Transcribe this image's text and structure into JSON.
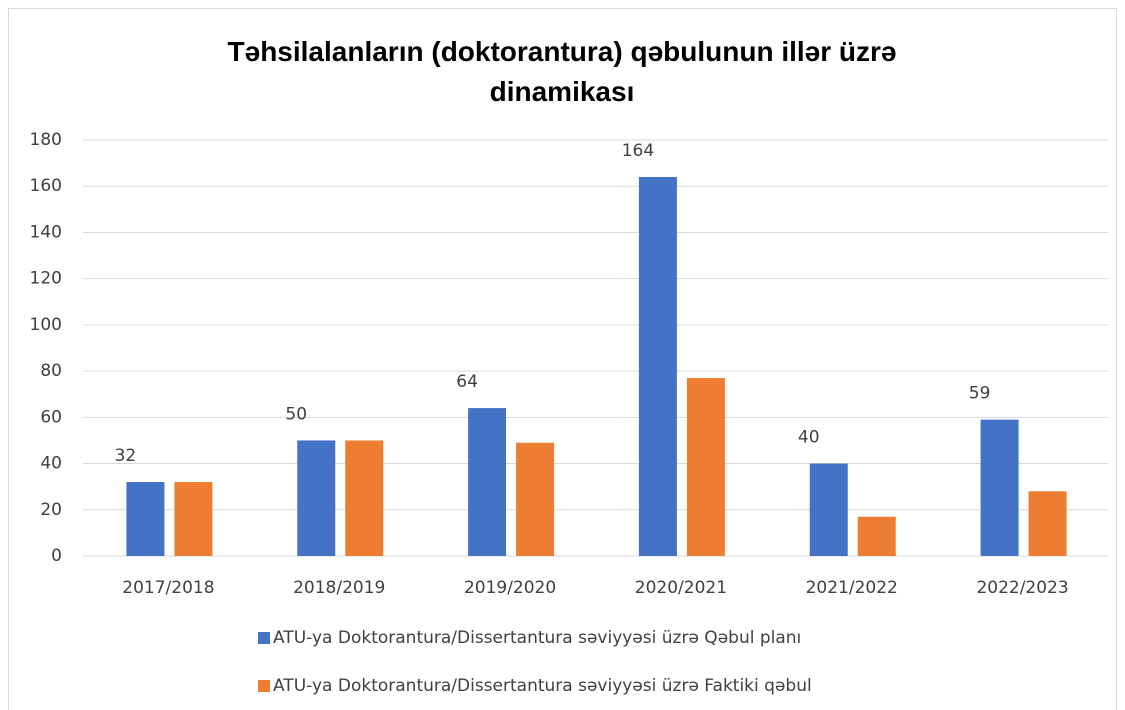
{
  "chart_data": {
    "type": "bar",
    "title": "Təhsilalanların (doktorantura) qəbulunun illər üzrə dinamikası",
    "categories": [
      "2017/2018",
      "2018/2019",
      "2019/2020",
      "2020/2021",
      "2021/2022",
      "2022/2023"
    ],
    "series": [
      {
        "name": "ATU-ya Doktorantura/Dissertantura səviyyəsi üzrə Qəbul planı",
        "color": "#4472c4",
        "values": [
          32,
          50,
          64,
          164,
          40,
          59
        ],
        "show_labels": true
      },
      {
        "name": "ATU-ya Doktorantura/Dissertantura səviyyəsi üzrə Faktiki qəbul",
        "color": "#ed7d31",
        "values": [
          32,
          50,
          49,
          77,
          17,
          28
        ],
        "show_labels": false
      }
    ],
    "ylim": [
      0,
      180
    ],
    "yticks": [
      0,
      20,
      40,
      60,
      80,
      100,
      120,
      140,
      160,
      180
    ],
    "grid": true,
    "legend": "bottom"
  }
}
